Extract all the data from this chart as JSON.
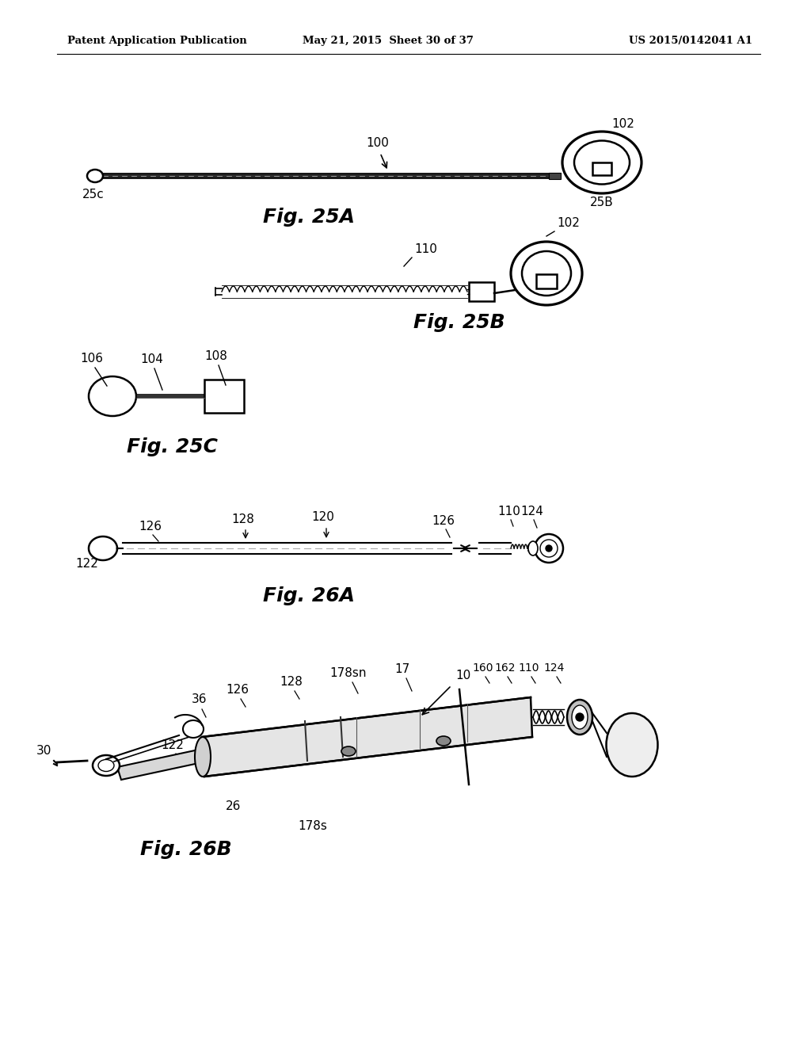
{
  "bg_color": "#ffffff",
  "header_left": "Patent Application Publication",
  "header_mid": "May 21, 2015  Sheet 30 of 37",
  "header_right": "US 2015/0142041 A1",
  "fig_label_font": 18,
  "ref_font": 11,
  "lw": 1.8
}
